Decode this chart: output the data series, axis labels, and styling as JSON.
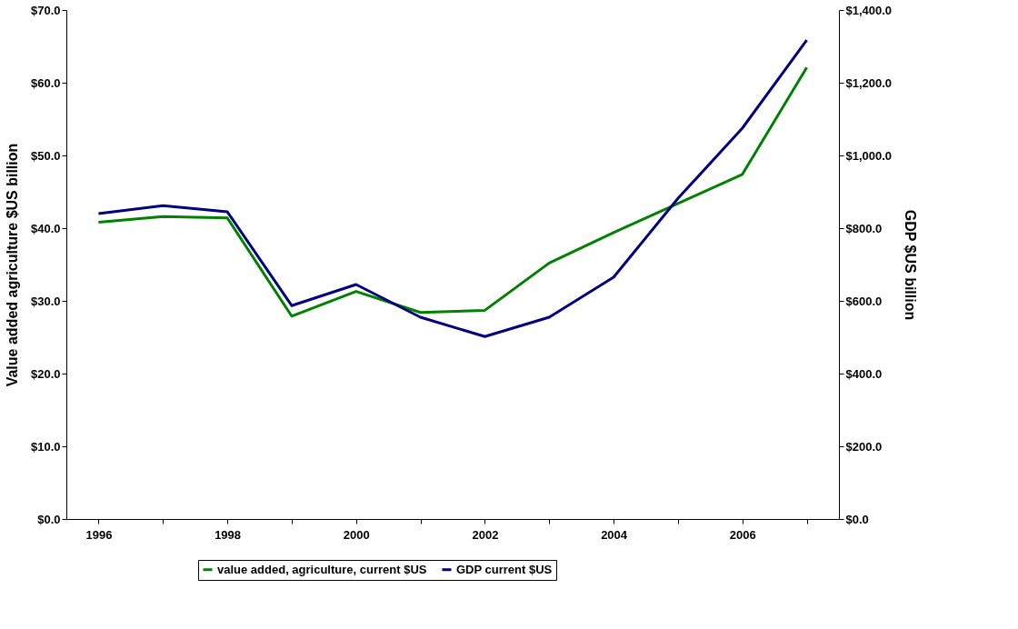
{
  "chart_data": {
    "type": "line",
    "ylabel": "Value added agriculture $US billion",
    "y2label": "GDP $US billion",
    "categories": [
      "1996",
      null,
      "1998",
      null,
      "2000",
      null,
      "2002",
      null,
      "2004",
      null,
      "2006",
      null
    ],
    "series": [
      {
        "name": "value added, agriculture, current $US",
        "color": "#008000",
        "values": [
          40.8,
          41.6,
          41.4,
          27.9,
          31.3,
          28.4,
          28.7,
          35.2,
          39.4,
          43.4,
          47.4,
          62.1
        ]
      },
      {
        "name": "GDP current $US",
        "color": "#000080",
        "axis": "y2",
        "values": [
          840,
          862,
          845,
          587,
          645,
          555,
          502,
          555,
          665,
          882,
          1075,
          1317
        ]
      }
    ],
    "ylim": [
      0,
      70
    ],
    "yticks": [
      {
        "value": 0,
        "label": "$0.0"
      },
      {
        "value": 10,
        "label": "$10.0"
      },
      {
        "value": 20,
        "label": "$20.0"
      },
      {
        "value": 30,
        "label": "$30.0"
      },
      {
        "value": 40,
        "label": "$40.0"
      },
      {
        "value": 50,
        "label": "$50.0"
      },
      {
        "value": 60,
        "label": "$60.0"
      },
      {
        "value": 70,
        "label": "$70.0"
      }
    ],
    "y2lim": [
      0,
      1400
    ],
    "y2ticks": [
      {
        "value": 0,
        "label": "$0.0"
      },
      {
        "value": 200,
        "label": "$200.0"
      },
      {
        "value": 400,
        "label": "$400.0"
      },
      {
        "value": 600,
        "label": "$600.0"
      },
      {
        "value": 800,
        "label": "$800.0"
      },
      {
        "value": 1000,
        "label": "$1,000.0"
      },
      {
        "value": 1200,
        "label": "$1,200.0"
      },
      {
        "value": 1400,
        "label": "$1,400.0"
      }
    ],
    "grid": false,
    "legend": "bottom",
    "marker": "none",
    "line_style": "solid"
  }
}
